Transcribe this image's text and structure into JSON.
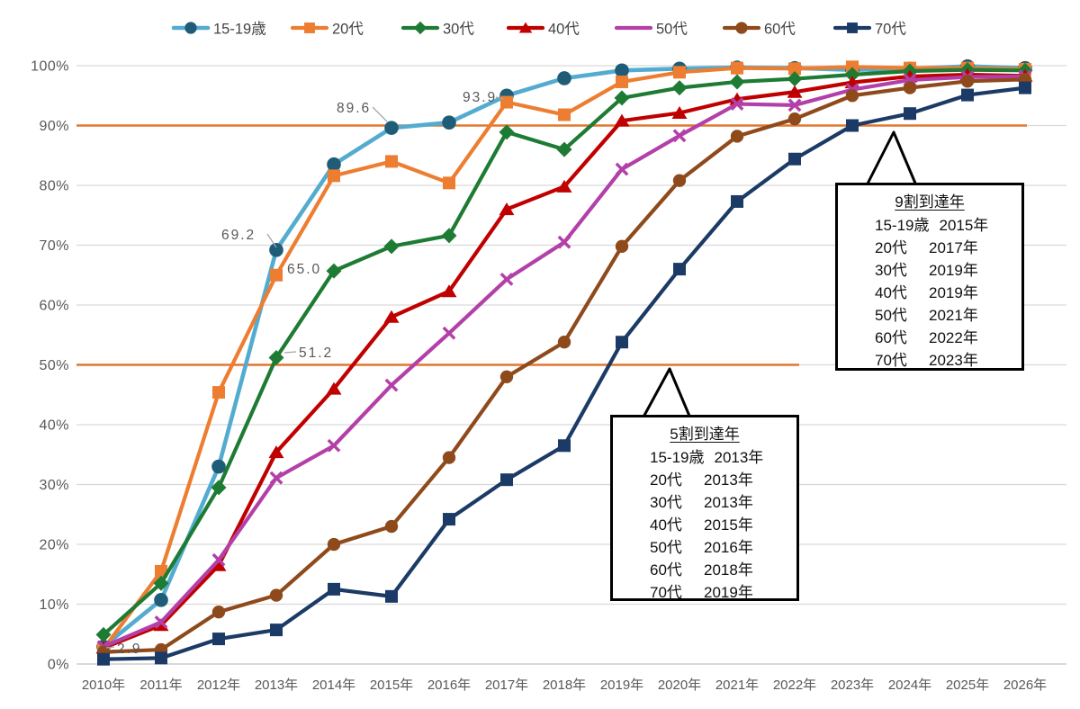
{
  "chart_data": {
    "type": "line",
    "title": "",
    "x_labels": [
      "2010年",
      "2011年",
      "2012年",
      "2013年",
      "2014年",
      "2015年",
      "2016年",
      "2017年",
      "2018年",
      "2019年",
      "2020年",
      "2021年",
      "2022年",
      "2023年",
      "2024年",
      "2025年",
      "2026年"
    ],
    "y_labels": [
      "0%",
      "10%",
      "20%",
      "30%",
      "40%",
      "50%",
      "60%",
      "70%",
      "80%",
      "90%",
      "100%"
    ],
    "ylim": [
      0,
      100
    ],
    "grid": true,
    "legend_position": "top",
    "series": [
      {
        "name": "15-19歳",
        "color": "#53ACCF",
        "marker": "circle",
        "marker_color": "#1F5C78",
        "values": [
          2.9,
          10.7,
          33.0,
          69.2,
          83.5,
          89.6,
          90.5,
          95.0,
          97.9,
          99.2,
          99.5,
          99.7,
          99.6,
          99.3,
          99.5,
          99.9,
          99.6
        ]
      },
      {
        "name": "20代",
        "color": "#ED7D31",
        "marker": "square",
        "marker_color": "#ED7D31",
        "values": [
          2.5,
          15.5,
          45.4,
          65.0,
          81.6,
          84.0,
          80.4,
          93.9,
          91.8,
          97.3,
          98.9,
          99.6,
          99.5,
          99.8,
          99.6,
          99.6,
          99.4
        ]
      },
      {
        "name": "30代",
        "color": "#1E7B34",
        "marker": "diamond",
        "marker_color": "#1E7B34",
        "values": [
          4.9,
          13.5,
          29.5,
          51.2,
          65.7,
          69.8,
          71.6,
          88.9,
          86.0,
          94.6,
          96.3,
          97.3,
          97.8,
          98.5,
          99.1,
          99.3,
          99.2
        ]
      },
      {
        "name": "40代",
        "color": "#C00000",
        "marker": "triangle",
        "marker_color": "#C00000",
        "values": [
          2.7,
          6.5,
          16.5,
          35.4,
          46.0,
          58.0,
          62.3,
          76.0,
          79.8,
          90.8,
          92.1,
          94.4,
          95.6,
          97.2,
          98.2,
          98.5,
          98.3
        ]
      },
      {
        "name": "50代",
        "color": "#B340A8",
        "marker": "x",
        "marker_color": "#B340A8",
        "values": [
          2.9,
          7.0,
          17.4,
          31.1,
          36.5,
          46.6,
          55.3,
          64.3,
          70.5,
          82.7,
          88.3,
          93.6,
          93.4,
          96.0,
          97.6,
          98.1,
          98.2
        ]
      },
      {
        "name": "60代",
        "color": "#8F4A1C",
        "marker": "circle",
        "marker_color": "#8F4A1C",
        "values": [
          2.0,
          2.4,
          8.7,
          11.5,
          20.0,
          23.0,
          34.5,
          48.0,
          53.8,
          69.8,
          80.8,
          88.2,
          91.1,
          95.0,
          96.3,
          97.4,
          97.7
        ]
      },
      {
        "name": "70代",
        "color": "#1B3B66",
        "marker": "square",
        "marker_color": "#1B3B66",
        "values": [
          0.8,
          1.0,
          4.2,
          5.7,
          12.5,
          11.3,
          24.2,
          30.8,
          36.5,
          53.8,
          66.0,
          77.3,
          84.4,
          90.0,
          92.0,
          95.1,
          96.3
        ]
      }
    ],
    "reference_lines": [
      {
        "value": 90,
        "color": "#E2772E"
      },
      {
        "value": 50,
        "color": "#E2772E"
      }
    ],
    "point_labels": [
      {
        "text": "2.9",
        "series": "15-19歳",
        "year": "2010年"
      },
      {
        "text": "69.2",
        "series": "15-19歳",
        "year": "2013年"
      },
      {
        "text": "65.0",
        "series": "20代",
        "year": "2013年"
      },
      {
        "text": "51.2",
        "series": "30代",
        "year": "2013年"
      },
      {
        "text": "89.6",
        "series": "15-19歳",
        "year": "2015年"
      },
      {
        "text": "93.9",
        "series": "20代",
        "year": "2017年"
      }
    ]
  },
  "annotations": {
    "box50": {
      "title": "5割到達年",
      "rows": [
        [
          "15-19歳",
          "2013年"
        ],
        [
          "20代",
          "2013年"
        ],
        [
          "30代",
          "2013年"
        ],
        [
          "40代",
          "2015年"
        ],
        [
          "50代",
          "2016年"
        ],
        [
          "60代",
          "2018年"
        ],
        [
          "70代",
          "2019年"
        ]
      ]
    },
    "box90": {
      "title": "9割到達年",
      "rows": [
        [
          "15-19歳",
          "2015年"
        ],
        [
          "20代",
          "2017年"
        ],
        [
          "30代",
          "2019年"
        ],
        [
          "40代",
          "2019年"
        ],
        [
          "50代",
          "2021年"
        ],
        [
          "60代",
          "2022年"
        ],
        [
          "70代",
          "2023年"
        ]
      ]
    }
  },
  "colors": {
    "grid": "#D9D9D9",
    "axis_text": "#595959",
    "label_text": "#595959",
    "reference": "#E2772E"
  }
}
